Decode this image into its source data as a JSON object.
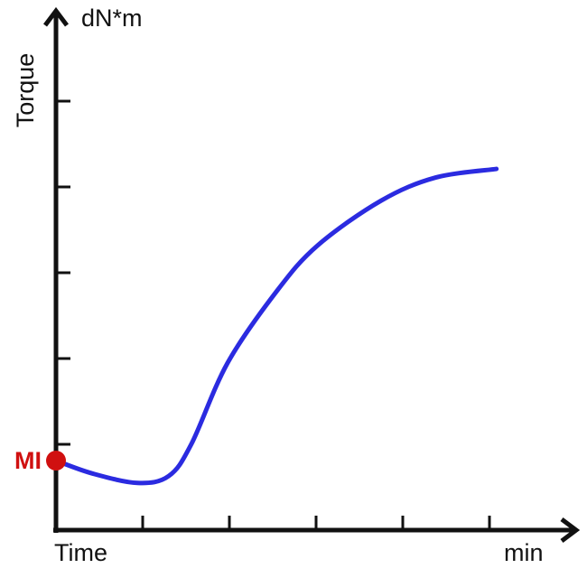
{
  "chart_data": {
    "type": "line",
    "y_unit": "dN*m",
    "y_label": "Torque",
    "x_label": "Time",
    "x_unit": "min",
    "x": [
      0,
      0.42,
      0.94,
      1.3,
      1.56,
      1.98,
      2.55,
      3.02,
      3.75,
      4.38,
      5.08
    ],
    "series": [
      {
        "color": "#2b2be0",
        "values": [
          0.81,
          0.66,
          0.55,
          0.63,
          1.0,
          1.95,
          2.79,
          3.32,
          3.84,
          4.11,
          4.21
        ]
      }
    ],
    "annotations": [
      {
        "text": "MI",
        "color": "#d01010",
        "x": 0,
        "y": 0.81
      }
    ],
    "xlim": [
      0,
      6
    ],
    "ylim": [
      0,
      6
    ],
    "xticks": [
      1,
      2,
      3,
      4,
      5
    ],
    "yticks": [
      1,
      2,
      3,
      4,
      5
    ]
  }
}
